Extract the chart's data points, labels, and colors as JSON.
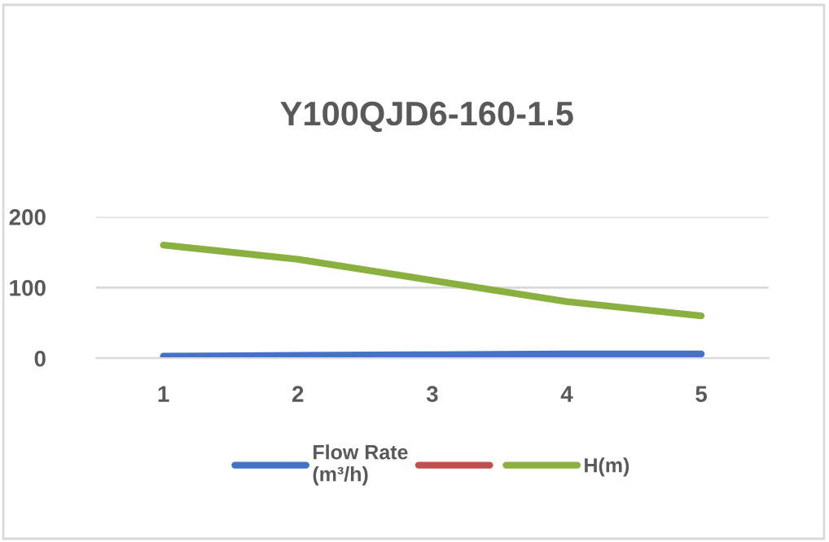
{
  "chart_data": {
    "type": "line",
    "title": "Y100QJD6-160-1.5",
    "categories": [
      "1",
      "2",
      "3",
      "4",
      "5"
    ],
    "series": [
      {
        "name": "Flow Rate\n(m³/h)",
        "color": "#4472c4",
        "values": [
          3,
          4,
          5,
          6,
          6
        ]
      },
      {
        "color": "#c0504d",
        "values": [
          null,
          null,
          null,
          null,
          null
        ]
      },
      {
        "name": "H(m)",
        "color": "#8ab040",
        "values": [
          160,
          140,
          110,
          80,
          60
        ]
      }
    ],
    "ylim": [
      0,
      200
    ],
    "yticks": [
      0,
      100,
      200
    ],
    "grid": "y",
    "legend": "bottom",
    "marker": "none",
    "line_style": "solid"
  }
}
